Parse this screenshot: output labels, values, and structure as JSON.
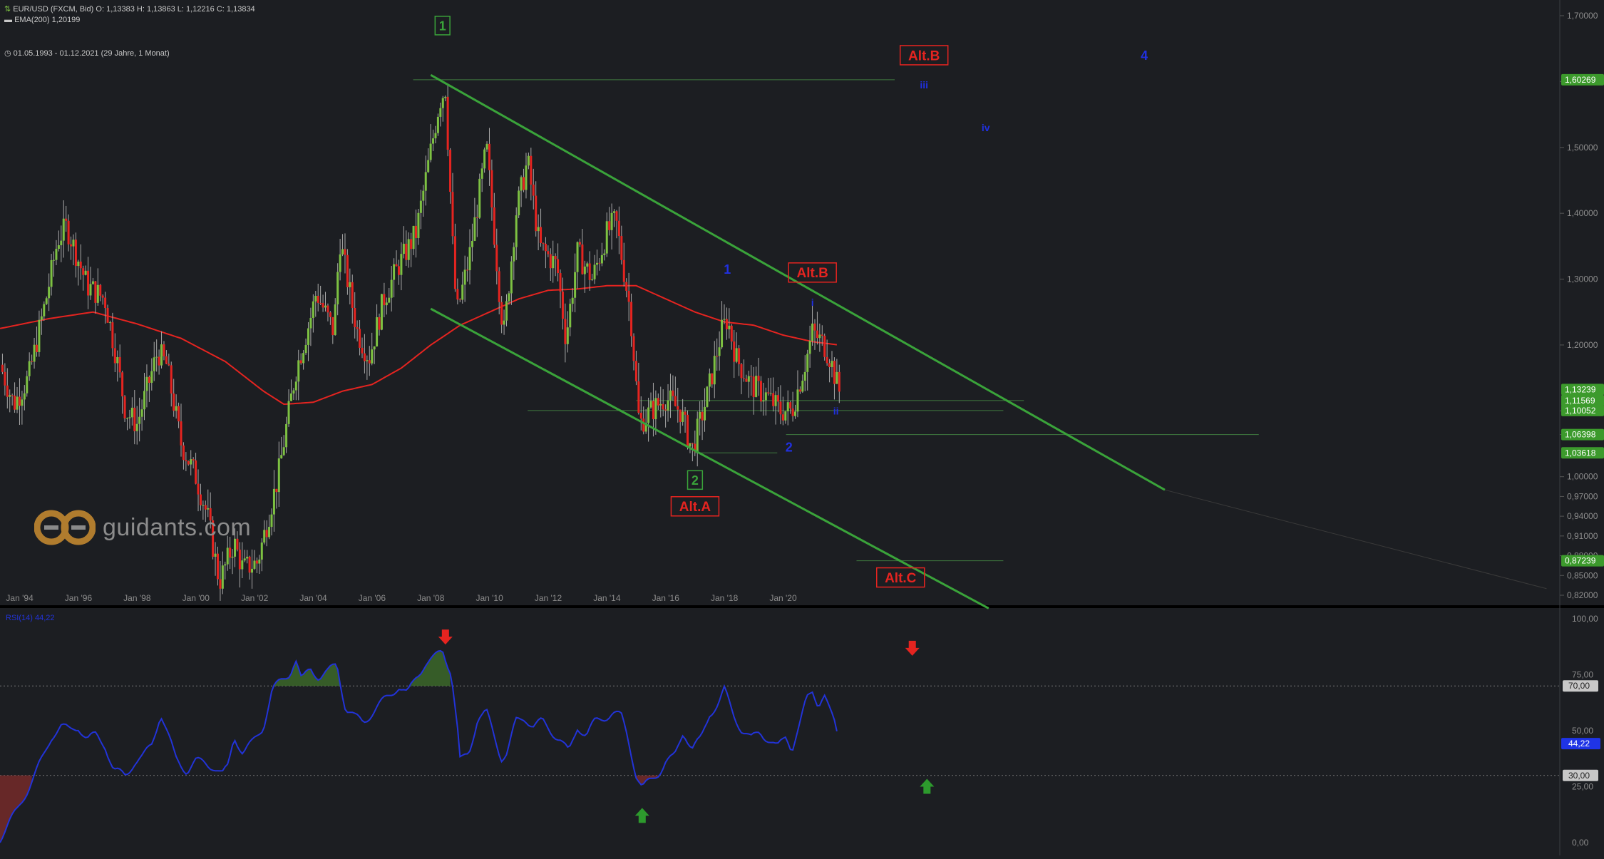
{
  "header": {
    "instrument_label": "EUR/USD (FXCM, Bid)",
    "ohlc": {
      "open": "O: 1,13383",
      "high": "H: 1,13863",
      "low": "L: 1,12216",
      "close": "C: 1,13834"
    },
    "ema_label": "EMA(200)",
    "ema_value": "1,20199",
    "range_label": "01.05.1993 - 01.12.2021",
    "range_detail": "(29 Jahre, 1 Monat)"
  },
  "logo": {
    "text": "guidants.com"
  },
  "colors": {
    "background": "#1c1e22",
    "bull_candle": "#7dc142",
    "bear_candle": "#e52420",
    "ema": "#e52420",
    "channel": "#3aa33a",
    "wave_blue": "#2030e0",
    "wave_green": "#3aa33a",
    "wave_red": "#e52420",
    "rsi_line": "#2233d8",
    "axis_text": "#8c8c8c"
  },
  "chart_data": [
    {
      "type": "candlestick",
      "title": "EUR/USD (FXCM, Bid)",
      "interval": "1 Monat",
      "x_ticks": [
        "Jan '94",
        "Jan '96",
        "Jan '98",
        "Jan '00",
        "Jan '02",
        "Jan '04",
        "Jan '06",
        "Jan '08",
        "Jan '10",
        "Jan '12",
        "Jan '14",
        "Jan '16",
        "Jan '18",
        "Jan '20"
      ],
      "y_ticks": [
        "1,70000",
        "1,60000",
        "1,50000",
        "1,40000",
        "1,30000",
        "1,20000",
        "1,10000",
        "1,06398",
        "1,00000",
        "0,97000",
        "0,94000",
        "0,91000",
        "0,88000",
        "0,85000",
        "0,82000"
      ],
      "ylim": [
        0.815,
        1.72
      ],
      "price_path": [
        [
          1993.33,
          1.17
        ],
        [
          1993.8,
          1.11
        ],
        [
          1994.3,
          1.15
        ],
        [
          1994.9,
          1.27
        ],
        [
          1995.3,
          1.36
        ],
        [
          1995.6,
          1.38
        ],
        [
          1996.3,
          1.29
        ],
        [
          1996.9,
          1.27
        ],
        [
          1997.3,
          1.18
        ],
        [
          1997.6,
          1.1
        ],
        [
          1998.0,
          1.08
        ],
        [
          1998.7,
          1.19
        ],
        [
          1999.0,
          1.17
        ],
        [
          1999.5,
          1.05
        ],
        [
          2000.0,
          1.0
        ],
        [
          2000.4,
          0.94
        ],
        [
          2000.8,
          0.84
        ],
        [
          2001.3,
          0.9
        ],
        [
          2001.6,
          0.86
        ],
        [
          2002.1,
          0.87
        ],
        [
          2002.8,
          1.0
        ],
        [
          2003.4,
          1.16
        ],
        [
          2003.9,
          1.24
        ],
        [
          2004.1,
          1.28
        ],
        [
          2004.7,
          1.22
        ],
        [
          2004.9,
          1.36
        ],
        [
          2005.5,
          1.22
        ],
        [
          2005.9,
          1.18
        ],
        [
          2006.4,
          1.27
        ],
        [
          2006.9,
          1.32
        ],
        [
          2007.5,
          1.37
        ],
        [
          2007.9,
          1.47
        ],
        [
          2008.3,
          1.57
        ],
        [
          2008.5,
          1.59
        ],
        [
          2008.8,
          1.3
        ],
        [
          2008.9,
          1.25
        ],
        [
          2009.3,
          1.33
        ],
        [
          2009.9,
          1.5
        ],
        [
          2010.4,
          1.25
        ],
        [
          2010.5,
          1.22
        ],
        [
          2010.9,
          1.4
        ],
        [
          2011.3,
          1.48
        ],
        [
          2011.7,
          1.35
        ],
        [
          2012.3,
          1.32
        ],
        [
          2012.6,
          1.21
        ],
        [
          2013.0,
          1.34
        ],
        [
          2013.5,
          1.3
        ],
        [
          2014.0,
          1.37
        ],
        [
          2014.3,
          1.39
        ],
        [
          2014.8,
          1.25
        ],
        [
          2015.1,
          1.08
        ],
        [
          2015.5,
          1.1
        ],
        [
          2016.0,
          1.12
        ],
        [
          2016.5,
          1.1
        ],
        [
          2016.9,
          1.04
        ],
        [
          2017.4,
          1.12
        ],
        [
          2017.9,
          1.22
        ],
        [
          2018.1,
          1.24
        ],
        [
          2018.4,
          1.18
        ],
        [
          2018.9,
          1.14
        ],
        [
          2019.5,
          1.12
        ],
        [
          2019.9,
          1.1
        ],
        [
          2020.3,
          1.1
        ],
        [
          2020.8,
          1.18
        ],
        [
          2021.0,
          1.22
        ],
        [
          2021.4,
          1.2
        ],
        [
          2021.6,
          1.18
        ],
        [
          2021.9,
          1.13
        ]
      ],
      "ema200_path": [
        [
          1993.33,
          1.225
        ],
        [
          1995.0,
          1.24
        ],
        [
          1996.5,
          1.25
        ],
        [
          1998.0,
          1.232
        ],
        [
          1999.5,
          1.21
        ],
        [
          2001.0,
          1.175
        ],
        [
          2002.3,
          1.13
        ],
        [
          2003.0,
          1.11
        ],
        [
          2004.0,
          1.113
        ],
        [
          2005.0,
          1.13
        ],
        [
          2006.0,
          1.14
        ],
        [
          2007.0,
          1.165
        ],
        [
          2008.0,
          1.2
        ],
        [
          2009.0,
          1.23
        ],
        [
          2010.0,
          1.25
        ],
        [
          2011.0,
          1.27
        ],
        [
          2012.0,
          1.283
        ],
        [
          2013.0,
          1.285
        ],
        [
          2014.0,
          1.29
        ],
        [
          2015.0,
          1.29
        ],
        [
          2016.0,
          1.27
        ],
        [
          2017.0,
          1.25
        ],
        [
          2018.0,
          1.235
        ],
        [
          2019.0,
          1.23
        ],
        [
          2020.0,
          1.215
        ],
        [
          2021.0,
          1.205
        ],
        [
          2021.9,
          1.2
        ]
      ],
      "channel_upper": [
        [
          2008.0,
          1.61
        ],
        [
          2033.0,
          0.98
        ]
      ],
      "channel_lower": [
        [
          2008.0,
          1.255
        ],
        [
          2027.0,
          0.8
        ]
      ],
      "dotted_extension": [
        [
          2033.0,
          0.98
        ],
        [
          2046.0,
          0.83
        ]
      ],
      "horizontal_levels": [
        {
          "price": 1.60269,
          "from": 2007.4,
          "to": 2023.8,
          "label": "1,60269"
        },
        {
          "price": 1.10052,
          "from": 2011.3,
          "to": 2027.5,
          "label": "1,10052"
        },
        {
          "price": 1.11569,
          "from": 2015.0,
          "to": 2028.2,
          "label": "1,11569"
        },
        {
          "price": 1.06398,
          "from": 2020.1,
          "to": 2036.2,
          "label": "1,06398"
        },
        {
          "price": 1.03618,
          "from": 2017.0,
          "to": 2019.8,
          "label": "1,03618"
        },
        {
          "price": 0.87239,
          "from": 2022.5,
          "to": 2027.5,
          "label": "0,87239"
        }
      ],
      "price_labels": [
        {
          "text": "1,60269",
          "price": 1.60269
        },
        {
          "text": "1,13239",
          "price": 1.13239
        },
        {
          "text": "1,11569",
          "price": 1.11569
        },
        {
          "text": "1,10052",
          "price": 1.10052
        },
        {
          "text": "1,06398",
          "price": 1.06398
        },
        {
          "text": "1,03618",
          "price": 1.03618
        },
        {
          "text": "0,87239",
          "price": 0.87239
        }
      ],
      "annotations": [
        {
          "text": "1",
          "x": 2008.4,
          "y": 1.685,
          "style": "green-box"
        },
        {
          "text": "2",
          "x": 2017.0,
          "y": 0.995,
          "style": "green-box"
        },
        {
          "text": "Alt.A",
          "x": 2017.0,
          "y": 0.955,
          "style": "red-box"
        },
        {
          "text": "Alt.B",
          "x": 2024.8,
          "y": 1.64,
          "style": "red-box"
        },
        {
          "text": "Alt.B",
          "x": 2021.0,
          "y": 1.31,
          "style": "red-box"
        },
        {
          "text": "Alt.C",
          "x": 2024.0,
          "y": 0.847,
          "style": "red-box"
        },
        {
          "text": "1",
          "x": 2018.1,
          "y": 1.315,
          "style": "blue"
        },
        {
          "text": "2",
          "x": 2020.2,
          "y": 1.045,
          "style": "blue"
        },
        {
          "text": "4",
          "x": 2032.3,
          "y": 1.64,
          "style": "blue"
        },
        {
          "text": "i",
          "x": 2021.0,
          "y": 1.265,
          "style": "blue-small"
        },
        {
          "text": "ii",
          "x": 2021.8,
          "y": 1.1,
          "style": "blue-small"
        },
        {
          "text": "iii",
          "x": 2024.8,
          "y": 1.595,
          "style": "blue-small"
        },
        {
          "text": "iv",
          "x": 2026.9,
          "y": 1.53,
          "style": "blue-small"
        }
      ]
    },
    {
      "type": "line",
      "title": "RSI(14)",
      "legend": "RSI(14)",
      "last_value": "44,22",
      "y_ticks": [
        "100,00",
        "75,00",
        "50,00",
        "25,00",
        "0,00"
      ],
      "ylim": [
        0,
        100
      ],
      "levels": [
        {
          "value": 70,
          "label": "70,00"
        },
        {
          "value": 30,
          "label": "30,00"
        }
      ],
      "current_label": {
        "value": 44.22,
        "label": "44,22"
      },
      "rsi_path": [
        [
          1993.33,
          2
        ],
        [
          1993.6,
          8
        ],
        [
          1993.9,
          14
        ],
        [
          1994.2,
          22
        ],
        [
          1994.5,
          30
        ],
        [
          1994.8,
          38
        ],
        [
          1995.1,
          48
        ],
        [
          1995.4,
          52
        ],
        [
          1995.7,
          50
        ],
        [
          1996.0,
          52
        ],
        [
          1996.3,
          46
        ],
        [
          1996.6,
          48
        ],
        [
          1996.9,
          44
        ],
        [
          1997.2,
          32
        ],
        [
          1997.6,
          30
        ],
        [
          1997.9,
          36
        ],
        [
          1998.2,
          38
        ],
        [
          1998.5,
          44
        ],
        [
          1998.8,
          58
        ],
        [
          1999.0,
          50
        ],
        [
          1999.3,
          38
        ],
        [
          1999.7,
          32
        ],
        [
          2000.0,
          36
        ],
        [
          2000.3,
          36
        ],
        [
          2000.6,
          34
        ],
        [
          2000.9,
          30
        ],
        [
          2001.1,
          34
        ],
        [
          2001.3,
          48
        ],
        [
          2001.6,
          40
        ],
        [
          2001.9,
          44
        ],
        [
          2002.3,
          52
        ],
        [
          2002.6,
          68
        ],
        [
          2002.9,
          72
        ],
        [
          2003.2,
          76
        ],
        [
          2003.4,
          82
        ],
        [
          2003.6,
          72
        ],
        [
          2003.9,
          78
        ],
        [
          2004.2,
          74
        ],
        [
          2004.5,
          76
        ],
        [
          2004.8,
          80
        ],
        [
          2005.1,
          60
        ],
        [
          2005.4,
          56
        ],
        [
          2005.7,
          54
        ],
        [
          2006.0,
          58
        ],
        [
          2006.3,
          62
        ],
        [
          2006.6,
          66
        ],
        [
          2006.9,
          70
        ],
        [
          2007.2,
          66
        ],
        [
          2007.5,
          74
        ],
        [
          2007.8,
          80
        ],
        [
          2008.1,
          82
        ],
        [
          2008.4,
          86
        ],
        [
          2008.7,
          76
        ],
        [
          2008.9,
          52
        ],
        [
          2009.0,
          36
        ],
        [
          2009.3,
          40
        ],
        [
          2009.6,
          56
        ],
        [
          2009.9,
          58
        ],
        [
          2010.1,
          50
        ],
        [
          2010.4,
          38
        ],
        [
          2010.6,
          40
        ],
        [
          2010.9,
          54
        ],
        [
          2011.2,
          56
        ],
        [
          2011.5,
          52
        ],
        [
          2011.8,
          54
        ],
        [
          2012.1,
          50
        ],
        [
          2012.4,
          46
        ],
        [
          2012.7,
          40
        ],
        [
          2013.0,
          52
        ],
        [
          2013.3,
          48
        ],
        [
          2013.6,
          54
        ],
        [
          2013.9,
          56
        ],
        [
          2014.2,
          58
        ],
        [
          2014.5,
          56
        ],
        [
          2014.7,
          48
        ],
        [
          2015.0,
          30
        ],
        [
          2015.2,
          24
        ],
        [
          2015.5,
          28
        ],
        [
          2015.8,
          32
        ],
        [
          2016.0,
          36
        ],
        [
          2016.3,
          38
        ],
        [
          2016.6,
          50
        ],
        [
          2016.9,
          42
        ],
        [
          2017.2,
          46
        ],
        [
          2017.5,
          58
        ],
        [
          2017.8,
          62
        ],
        [
          2018.0,
          68
        ],
        [
          2018.3,
          58
        ],
        [
          2018.6,
          50
        ],
        [
          2018.9,
          46
        ],
        [
          2019.2,
          50
        ],
        [
          2019.5,
          46
        ],
        [
          2019.8,
          42
        ],
        [
          2020.1,
          48
        ],
        [
          2020.3,
          42
        ],
        [
          2020.6,
          54
        ],
        [
          2020.8,
          64
        ],
        [
          2021.0,
          68
        ],
        [
          2021.2,
          62
        ],
        [
          2021.4,
          66
        ],
        [
          2021.6,
          58
        ],
        [
          2021.8,
          52
        ],
        [
          2021.9,
          44
        ]
      ],
      "arrows": [
        {
          "direction": "down",
          "x": 2008.5,
          "y": 92,
          "color": "#e52420"
        },
        {
          "direction": "down",
          "x": 2024.4,
          "y": 87,
          "color": "#e52420"
        },
        {
          "direction": "up",
          "x": 2015.2,
          "y": 12,
          "color": "#2d9a2d"
        },
        {
          "direction": "up",
          "x": 2024.9,
          "y": 25,
          "color": "#2d9a2d"
        }
      ]
    }
  ]
}
